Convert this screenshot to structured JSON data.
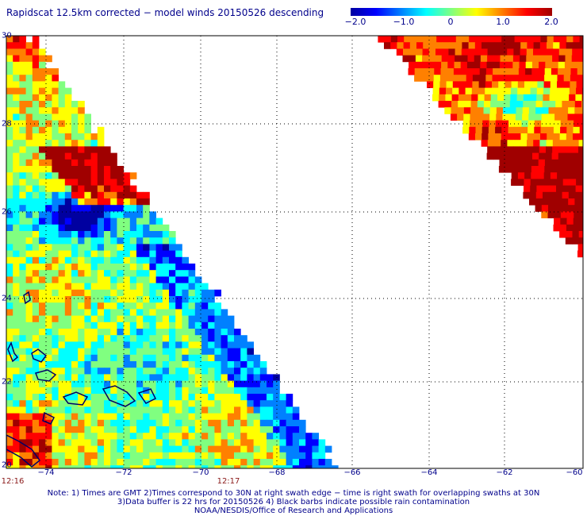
{
  "title": "Rapidscat 12.5km corrected − model winds 20150526 descending",
  "colorbar": {
    "ticks": [
      "−2.0",
      "−1.0",
      "0",
      "1.0",
      "2.0"
    ],
    "colors": [
      "#0000a0",
      "#0000ff",
      "#0080ff",
      "#00ffff",
      "#80ff80",
      "#ffff00",
      "#ff8000",
      "#ff0000",
      "#a00000"
    ]
  },
  "axes": {
    "lat_labels": [
      "30",
      "28",
      "26",
      "24",
      "22",
      "20"
    ],
    "lon_labels": [
      "−74",
      "−72",
      "−70",
      "−68",
      "−66",
      "−64",
      "−62",
      "−60"
    ],
    "lat_range": [
      20,
      30
    ],
    "lon_range": [
      -75,
      -60
    ]
  },
  "times": [
    "12:16",
    "12:17"
  ],
  "note": {
    "line1": "Note: 1) Times are GMT 2)Times correspond to 30N at right swath edge − time is right swath for overlapping swaths at 30N",
    "line2": "3)Data buffer is 22 hrs for 20150526 4) Black barbs indicate possible rain contamination",
    "line3": "NOAA/NESDIS/Office of Research and Applications"
  }
}
